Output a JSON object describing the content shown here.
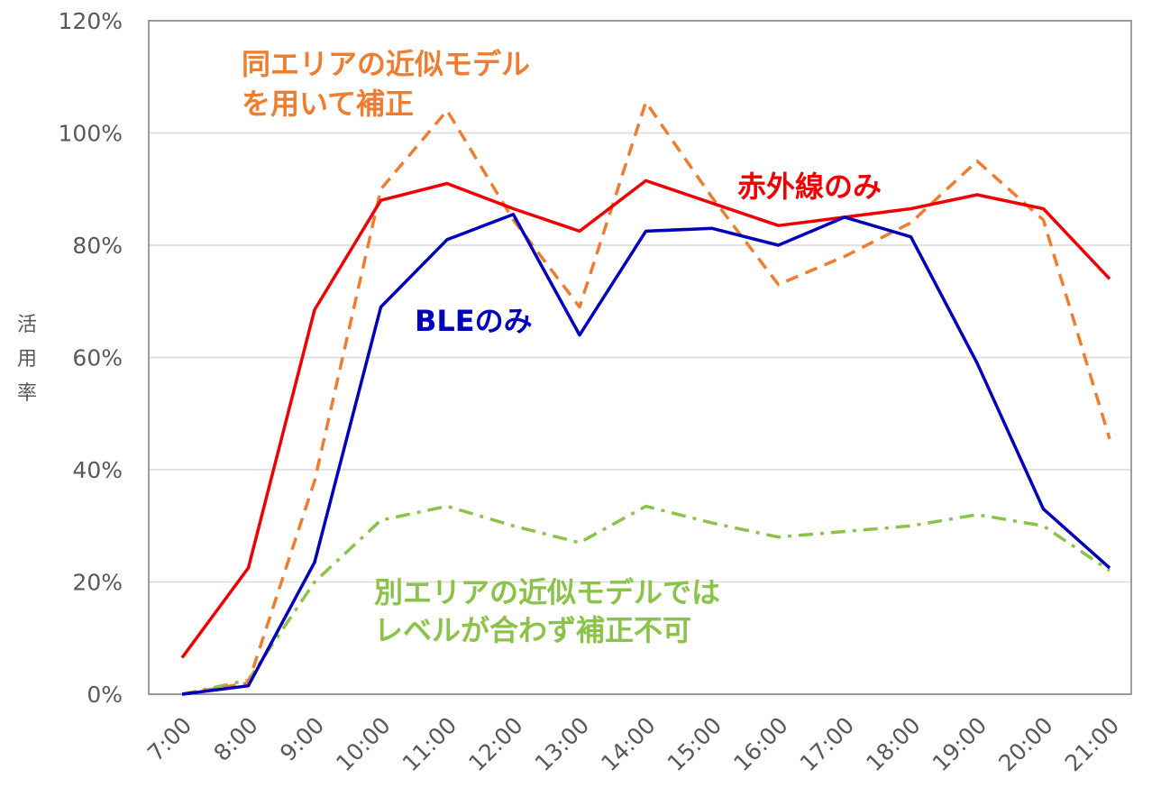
{
  "chart_data": {
    "type": "line",
    "ylabel": "活用率",
    "xlabel": "",
    "categories": [
      "7:00",
      "8:00",
      "9:00",
      "10:00",
      "11:00",
      "12:00",
      "13:00",
      "14:00",
      "15:00",
      "16:00",
      "17:00",
      "18:00",
      "19:00",
      "20:00",
      "21:00"
    ],
    "y_ticks": [
      "0%",
      "20%",
      "40%",
      "60%",
      "80%",
      "100%",
      "120%"
    ],
    "ylim": [
      0,
      120
    ],
    "grid": true,
    "series": [
      {
        "name": "赤外線のみ",
        "color": "#ee0000",
        "style": "solid",
        "values": [
          6.5,
          22.5,
          68.5,
          88,
          91,
          86.5,
          82.5,
          91.5,
          87.5,
          83.5,
          85,
          86.5,
          89,
          86.5,
          74
        ]
      },
      {
        "name": "BLEのみ",
        "color": "#0000bb",
        "style": "solid",
        "values": [
          0,
          1.5,
          23.5,
          69,
          81,
          85.5,
          64,
          82.5,
          83,
          80,
          85,
          81.5,
          59,
          33,
          22.5
        ]
      },
      {
        "name": "同エリアの近似モデルを用いて補正",
        "color": "#ed7d31",
        "style": "dash",
        "values": [
          0,
          2,
          38,
          90,
          104,
          84.5,
          69,
          105.5,
          88.5,
          73,
          78,
          84,
          95,
          84.5,
          45.5
        ]
      },
      {
        "name": "別エリアの近似モデルではレベルが合わず補正不可",
        "color": "#8bc34a",
        "style": "dashdot",
        "values": [
          0,
          2.5,
          20,
          31,
          33.5,
          30,
          27,
          33.5,
          30.5,
          28,
          29,
          30,
          32,
          30,
          22
        ]
      }
    ],
    "annotations": [
      {
        "lines": [
          "同エリアの近似モデル",
          "を用いて補正"
        ],
        "color": "#ed7d31"
      },
      {
        "lines": [
          "赤外線のみ"
        ],
        "color": "#ee0000"
      },
      {
        "lines": [
          "BLEのみ"
        ],
        "color": "#0000bb"
      },
      {
        "lines": [
          "別エリアの近似モデルでは",
          "レベルが合わず補正不可"
        ],
        "color": "#8bc34a"
      }
    ]
  }
}
